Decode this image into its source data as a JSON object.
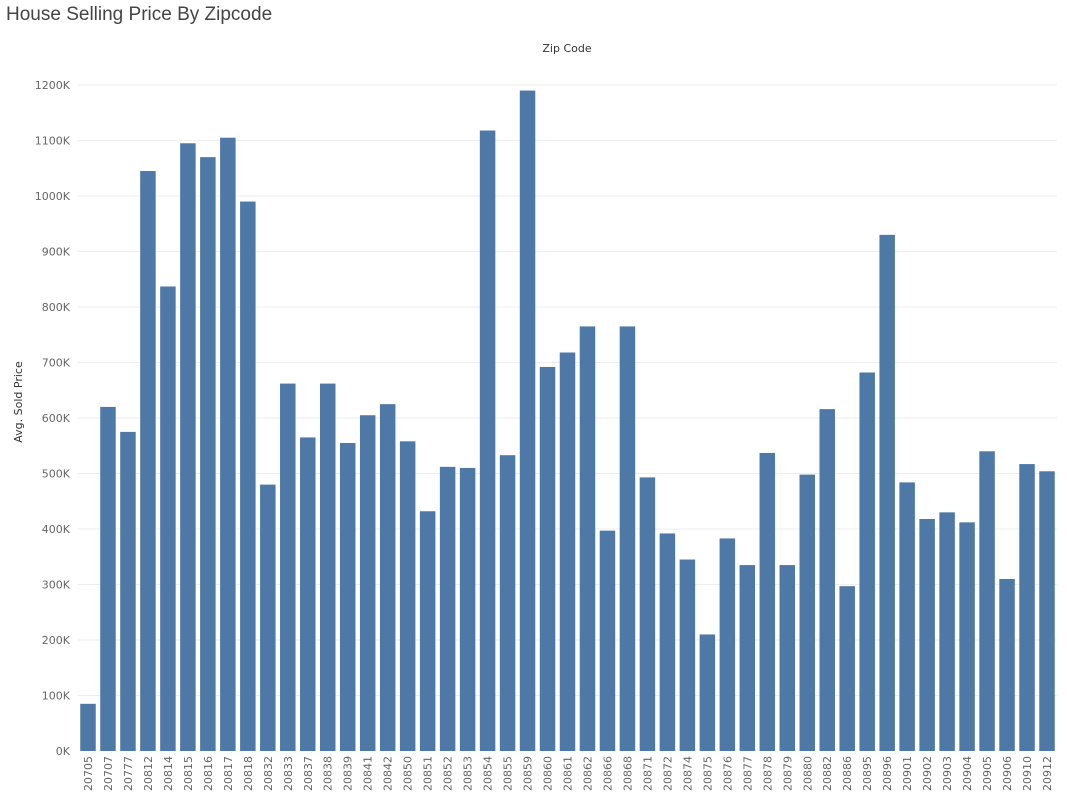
{
  "chart_data": {
    "type": "bar",
    "title": "House Selling Price By Zipcode",
    "column_header": "Zip Code",
    "ylabel": "Avg. Sold Price",
    "ylim": [
      0,
      1250000
    ],
    "yticks": [
      0,
      100000,
      200000,
      300000,
      400000,
      500000,
      600000,
      700000,
      800000,
      900000,
      1000000,
      1100000,
      1200000
    ],
    "ytick_labels": [
      "0K",
      "100K",
      "200K",
      "300K",
      "400K",
      "500K",
      "600K",
      "700K",
      "800K",
      "900K",
      "1000K",
      "1100K",
      "1200K"
    ],
    "grid": true,
    "bar_color": "#4e79a7",
    "grid_color": "#eeeeee",
    "categories": [
      "20705",
      "20707",
      "20777",
      "20812",
      "20814",
      "20815",
      "20816",
      "20817",
      "20818",
      "20832",
      "20833",
      "20837",
      "20838",
      "20839",
      "20841",
      "20842",
      "20850",
      "20851",
      "20852",
      "20853",
      "20854",
      "20855",
      "20859",
      "20860",
      "20861",
      "20862",
      "20866",
      "20868",
      "20871",
      "20872",
      "20874",
      "20875",
      "20876",
      "20877",
      "20878",
      "20879",
      "20880",
      "20882",
      "20886",
      "20895",
      "20896",
      "20901",
      "20902",
      "20903",
      "20904",
      "20905",
      "20906",
      "20910",
      "20912"
    ],
    "values": [
      85000,
      620000,
      575000,
      1045000,
      837000,
      1095000,
      1070000,
      1105000,
      990000,
      480000,
      662000,
      565000,
      662000,
      555000,
      605000,
      625000,
      558000,
      432000,
      512000,
      510000,
      1118000,
      533000,
      1190000,
      692000,
      718000,
      765000,
      397000,
      765000,
      493000,
      392000,
      345000,
      210000,
      383000,
      335000,
      537000,
      335000,
      498000,
      616000,
      297000,
      682000,
      930000,
      484000,
      418000,
      430000,
      412000,
      540000,
      310000,
      517000,
      504000
    ]
  }
}
